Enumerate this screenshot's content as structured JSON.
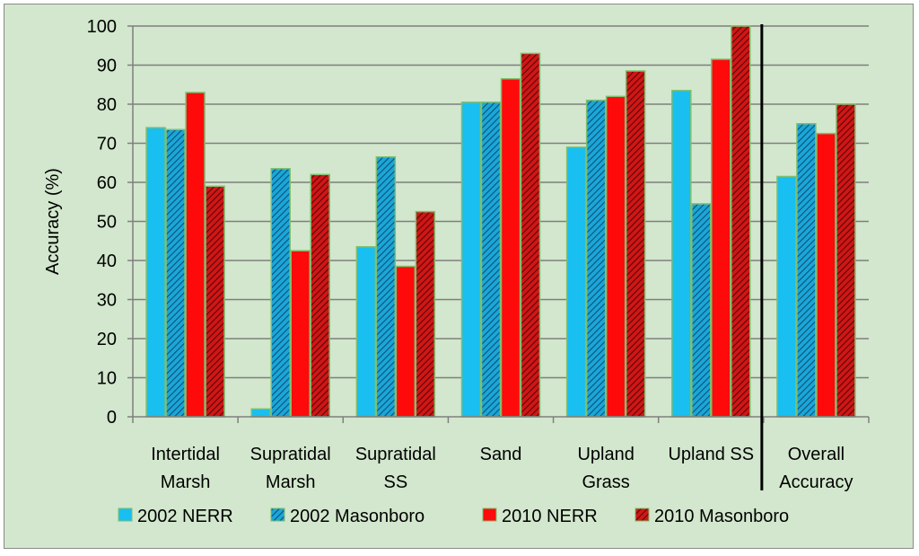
{
  "chart_data": {
    "type": "bar",
    "title": "",
    "xlabel": "",
    "ylabel": "Accuracy (%)",
    "ylim": [
      0,
      100
    ],
    "yticks": [
      0,
      10,
      20,
      30,
      40,
      50,
      60,
      70,
      80,
      90,
      100
    ],
    "grid": true,
    "legend_position": "bottom",
    "categories": [
      [
        "Intertidal",
        "Marsh"
      ],
      [
        "Supratidal",
        "Marsh"
      ],
      [
        "Supratidal",
        "SS"
      ],
      [
        "Sand"
      ],
      [
        "Upland",
        "Grass"
      ],
      [
        "Upland SS"
      ],
      [
        "Overall",
        "Accuracy"
      ]
    ],
    "series": [
      {
        "name": "2002 NERR",
        "color": "#18bff0",
        "pattern": "solid",
        "values": [
          74,
          2,
          43.5,
          80.5,
          69,
          83.5,
          61.5
        ]
      },
      {
        "name": "2002 Masonboro",
        "color": "#1aa7d8",
        "pattern": "hatch",
        "values": [
          73.5,
          63.5,
          66.5,
          80.5,
          81,
          54.5,
          75
        ]
      },
      {
        "name": "2010 NERR",
        "color": "#ff0a0a",
        "pattern": "solid",
        "values": [
          83,
          42.5,
          38.5,
          86.5,
          82,
          91.5,
          72.5
        ]
      },
      {
        "name": "2010 Masonboro",
        "color": "#c41212",
        "pattern": "hatch",
        "values": [
          59,
          62,
          52.5,
          93,
          88.5,
          100,
          80
        ]
      }
    ],
    "annotations": [
      "vertical separator line between Upland SS and Overall Accuracy"
    ]
  }
}
